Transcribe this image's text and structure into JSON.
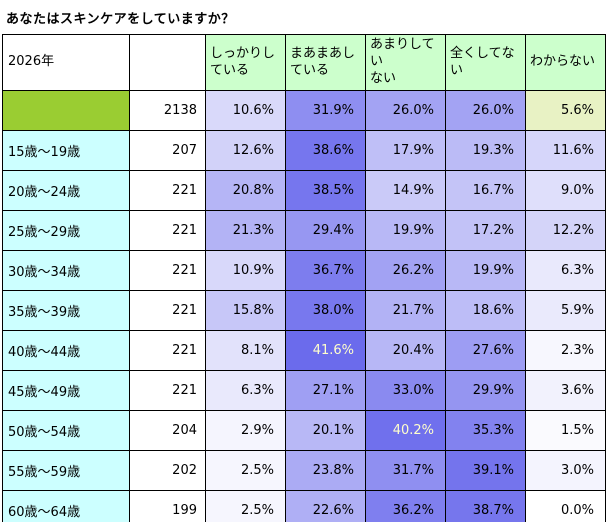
{
  "title": "あなたはスキンケアをしていますか？",
  "chart_data": {
    "type": "heatmap",
    "year_label": "2026年",
    "columns": [
      "しっかりし\nている",
      "まあまあし\nている",
      "あまりしてい\nない",
      "全くしてな\nい",
      "わからない"
    ],
    "value_unit": "%",
    "total": {
      "label": "",
      "count": 2138,
      "values": [
        10.6,
        31.9,
        26.0,
        26.0,
        5.6
      ]
    },
    "rows": [
      {
        "label": "15歳〜19歳",
        "count": 207,
        "values": [
          12.6,
          38.6,
          17.9,
          19.3,
          11.6
        ]
      },
      {
        "label": "20歳〜24歳",
        "count": 221,
        "values": [
          20.8,
          38.5,
          14.9,
          16.7,
          9.0
        ]
      },
      {
        "label": "25歳〜29歳",
        "count": 221,
        "values": [
          21.3,
          29.4,
          19.9,
          17.2,
          12.2
        ]
      },
      {
        "label": "30歳〜34歳",
        "count": 221,
        "values": [
          10.9,
          36.7,
          26.2,
          19.9,
          6.3
        ]
      },
      {
        "label": "35歳〜39歳",
        "count": 221,
        "values": [
          15.8,
          38.0,
          21.7,
          18.6,
          5.9
        ]
      },
      {
        "label": "40歳〜44歳",
        "count": 221,
        "values": [
          8.1,
          41.6,
          20.4,
          27.6,
          2.3
        ]
      },
      {
        "label": "45歳〜49歳",
        "count": 221,
        "values": [
          6.3,
          27.1,
          33.0,
          29.9,
          3.6
        ]
      },
      {
        "label": "50歳〜54歳",
        "count": 204,
        "values": [
          2.9,
          20.1,
          40.2,
          35.3,
          1.5
        ]
      },
      {
        "label": "55歳〜59歳",
        "count": 202,
        "values": [
          2.5,
          23.8,
          31.7,
          39.1,
          3.0
        ]
      },
      {
        "label": "60歳〜64歳",
        "count": 199,
        "values": [
          2.5,
          22.6,
          36.2,
          38.7,
          0.0
        ]
      }
    ],
    "heatmap": {
      "min_value": 0,
      "max_value": 42,
      "min_color": "#ffffff",
      "max_color": "#6a6aec",
      "high_text_color": "#ffffcc",
      "high_text_threshold": 40
    }
  },
  "colors": {
    "header_fill": "#ccffcc",
    "age_cell_fill": "#ccffff",
    "total_label_fill": "#9acd32",
    "total_unknown_fill": "#e8f2c4",
    "border": "#000000",
    "background": "#ffffff"
  }
}
